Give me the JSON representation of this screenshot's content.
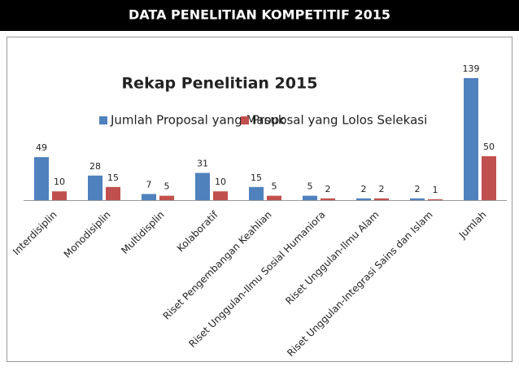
{
  "header": {
    "title": "DATA PENELITIAN KOMPETITIF 2015"
  },
  "chart_data": {
    "type": "bar",
    "title": "Rekap Penelitian 2015",
    "categories": [
      "Interdisiplin",
      "Monodisiplin",
      "Multidisplin",
      "Kolaboratif",
      "Riset Pengembangan Keahlian",
      "Riset Unggulan-Ilmu Sosial Humaniora",
      "Riset Unggulan-Ilmu Alam",
      "Riset Unggulan-Integrasi Sains dan Islam",
      "Jumlah"
    ],
    "series": [
      {
        "name": "Jumlah Proposal yang Masuk",
        "color": "#4f81bd",
        "values": [
          49,
          28,
          7,
          31,
          15,
          5,
          2,
          2,
          139
        ]
      },
      {
        "name": "Proposal yang Lolos Selekasi",
        "color": "#c0504d",
        "values": [
          10,
          15,
          5,
          10,
          5,
          2,
          2,
          1,
          50
        ]
      }
    ],
    "legend": "top"
  }
}
